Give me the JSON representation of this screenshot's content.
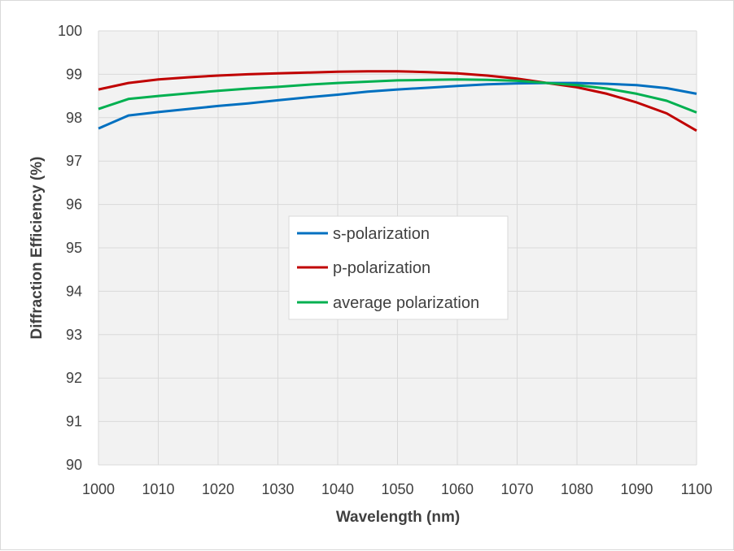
{
  "chart_data": {
    "type": "line",
    "xlabel": "Wavelength (nm)",
    "ylabel": "Diffraction Efficiency (%)",
    "xlim": [
      1000,
      1100
    ],
    "ylim": [
      90,
      100
    ],
    "xticks": [
      1000,
      1010,
      1020,
      1030,
      1040,
      1050,
      1060,
      1070,
      1080,
      1090,
      1100
    ],
    "yticks": [
      90,
      91,
      92,
      93,
      94,
      95,
      96,
      97,
      98,
      99,
      100
    ],
    "grid": true,
    "plot_background": "#f2f2f2",
    "grid_color": "#d9d9d9",
    "legend_position": "center",
    "x": [
      1000,
      1005,
      1010,
      1015,
      1020,
      1025,
      1030,
      1035,
      1040,
      1045,
      1050,
      1055,
      1060,
      1065,
      1070,
      1075,
      1080,
      1085,
      1090,
      1095,
      1100
    ],
    "series": [
      {
        "name": "s-polarization",
        "color": "#0070c0",
        "values": [
          97.75,
          98.05,
          98.13,
          98.2,
          98.27,
          98.33,
          98.4,
          98.47,
          98.53,
          98.6,
          98.65,
          98.69,
          98.73,
          98.77,
          98.79,
          98.8,
          98.8,
          98.78,
          98.75,
          98.68,
          98.55
        ]
      },
      {
        "name": "p-polarization",
        "color": "#c00000",
        "values": [
          98.65,
          98.8,
          98.88,
          98.93,
          98.97,
          99.0,
          99.02,
          99.04,
          99.06,
          99.07,
          99.07,
          99.05,
          99.02,
          98.97,
          98.9,
          98.8,
          98.7,
          98.55,
          98.35,
          98.1,
          97.7
        ]
      },
      {
        "name": "average polarization",
        "color": "#00b050",
        "values": [
          98.2,
          98.43,
          98.5,
          98.56,
          98.62,
          98.67,
          98.71,
          98.76,
          98.8,
          98.83,
          98.86,
          98.87,
          98.88,
          98.87,
          98.85,
          98.8,
          98.75,
          98.67,
          98.55,
          98.39,
          98.12
        ]
      }
    ]
  }
}
